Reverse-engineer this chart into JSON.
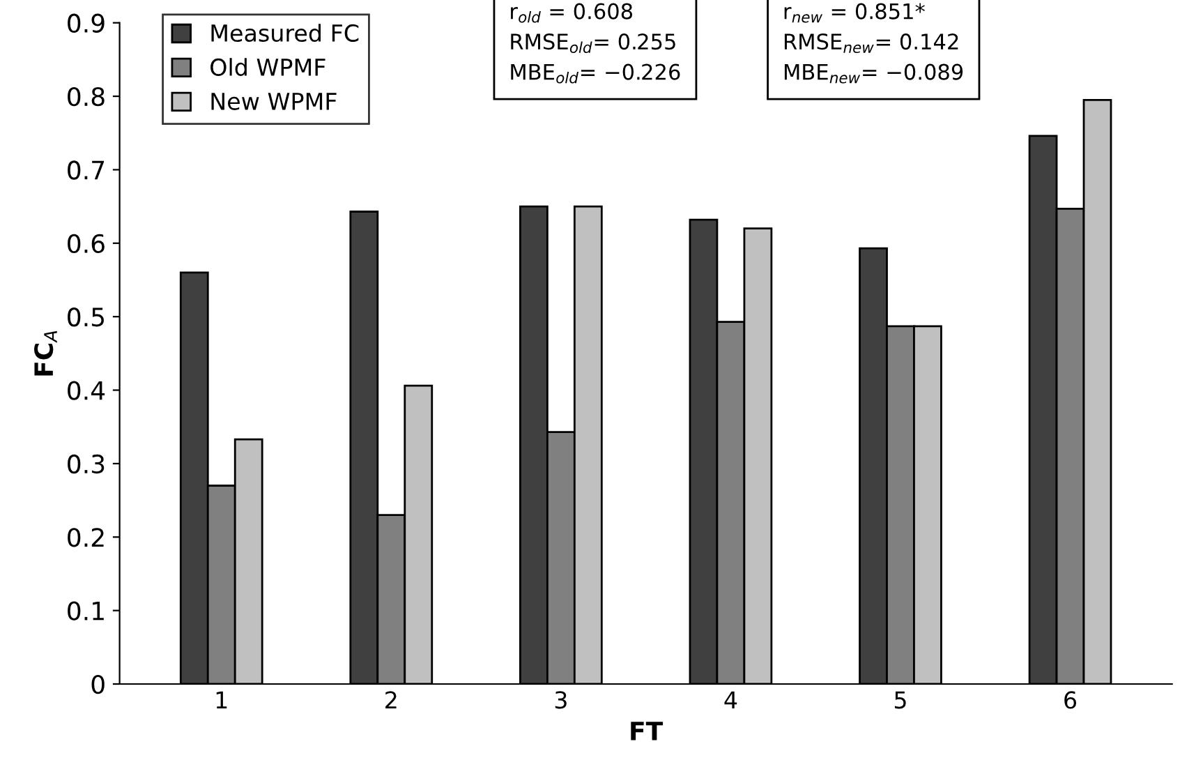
{
  "chart_data": {
    "type": "bar",
    "xlabel": "FT",
    "ylabel": "FC$_{A}$",
    "categories": [
      "1",
      "2",
      "3",
      "4",
      "5",
      "6"
    ],
    "series": [
      {
        "name": "Measured FC",
        "color": "#404040",
        "values": [
          0.56,
          0.643,
          0.65,
          0.632,
          0.593,
          0.746
        ]
      },
      {
        "name": "Old WPMF",
        "color": "#808080",
        "values": [
          0.27,
          0.23,
          0.343,
          0.493,
          0.487,
          0.647
        ]
      },
      {
        "name": "New WPMF",
        "color": "#c0c0c0",
        "values": [
          0.333,
          0.406,
          0.65,
          0.62,
          0.487,
          0.795
        ]
      }
    ],
    "annotations": [
      "r$_{old}$ = 0.608\nRMSE$_{old}$= 0.255\nMBE$_{old}$= −0.226",
      "r$_{new}$ = 0.851*\nRMSE$_{new}$= 0.142\nMBE$_{new}$= −0.089"
    ],
    "ylim": [
      0,
      0.9
    ],
    "yticks": [
      0,
      0.1,
      0.2,
      0.3,
      0.4,
      0.5,
      0.6,
      0.7,
      0.8,
      0.9
    ],
    "grid": false,
    "legend": "top left"
  }
}
